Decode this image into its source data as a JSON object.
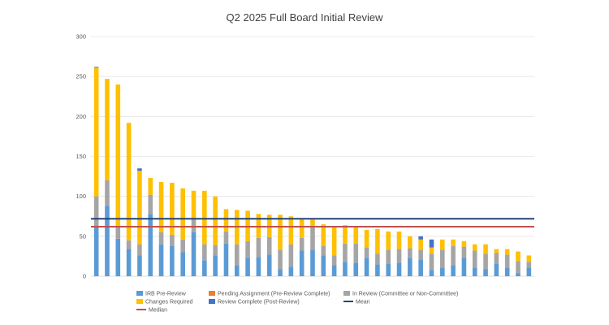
{
  "chart_data": {
    "type": "bar",
    "stacked": true,
    "title": "Q2 2025 Full Board Initial Review",
    "xlabel": "",
    "ylabel": "",
    "ylim": [
      0,
      300
    ],
    "yticks": [
      0,
      50,
      100,
      150,
      200,
      250,
      300
    ],
    "grid": true,
    "legend_position": "bottom",
    "colors": {
      "irb_pre_review": "#5b9bd5",
      "pending_assignment": "#ed7d31",
      "in_review": "#a5a5a5",
      "changes_required": "#ffc000",
      "review_complete": "#4472c4",
      "mean": "#264478",
      "median": "#c0504d"
    },
    "series": [
      {
        "key": "irb_pre_review",
        "name": "IRB Pre-Review",
        "values": [
          62,
          88,
          47,
          34,
          26,
          78,
          40,
          38,
          30,
          55,
          20,
          26,
          41,
          14,
          23,
          24,
          27,
          9,
          12,
          32,
          33,
          26,
          14,
          18,
          17,
          23,
          15,
          16,
          17,
          23,
          21,
          8,
          11,
          14,
          23,
          11,
          9,
          16,
          11,
          4,
          11
        ]
      },
      {
        "key": "pending_assignment",
        "name": "Pending Assignment (Pre-Review Complete)",
        "values": [
          0,
          0,
          0,
          0,
          0,
          0,
          0,
          0,
          0,
          0,
          0,
          0,
          0,
          0,
          0,
          0,
          0,
          0,
          0,
          0,
          0,
          0,
          0,
          0,
          0,
          0,
          0,
          0,
          0,
          0,
          0,
          0,
          0,
          0,
          0,
          0,
          0,
          0,
          0,
          0,
          0
        ]
      },
      {
        "key": "in_review",
        "name": "In Review (Committee or Non-Committee)",
        "values": [
          38,
          32,
          15,
          11,
          14,
          24,
          15,
          14,
          16,
          18,
          20,
          13,
          15,
          26,
          21,
          24,
          22,
          24,
          28,
          16,
          29,
          12,
          12,
          23,
          24,
          13,
          13,
          17,
          17,
          12,
          12,
          20,
          22,
          24,
          14,
          21,
          19,
          13,
          16,
          15,
          7
        ]
      },
      {
        "key": "changes_required",
        "name": "Changes Required",
        "values": [
          161,
          127,
          178,
          147,
          92,
          21,
          63,
          65,
          64,
          34,
          67,
          61,
          28,
          43,
          38,
          30,
          28,
          44,
          35,
          24,
          9,
          27,
          35,
          23,
          20,
          22,
          31,
          23,
          22,
          15,
          13,
          8,
          13,
          8,
          7,
          8,
          12,
          5,
          7,
          12,
          8
        ]
      },
      {
        "key": "review_complete",
        "name": "Review Complete (Post-Review)",
        "values": [
          1,
          0,
          0,
          0,
          3,
          0,
          0,
          0,
          0,
          0,
          0,
          0,
          0,
          0,
          0,
          0,
          0,
          0,
          0,
          0,
          0,
          0,
          0,
          0,
          0,
          0,
          0,
          0,
          0,
          0,
          4,
          10,
          0,
          0,
          0,
          0,
          0,
          0,
          0,
          0,
          0
        ]
      }
    ],
    "reference_lines": [
      {
        "key": "mean",
        "name": "Mean",
        "value": 72
      },
      {
        "key": "median",
        "name": "Median",
        "value": 62
      }
    ]
  }
}
